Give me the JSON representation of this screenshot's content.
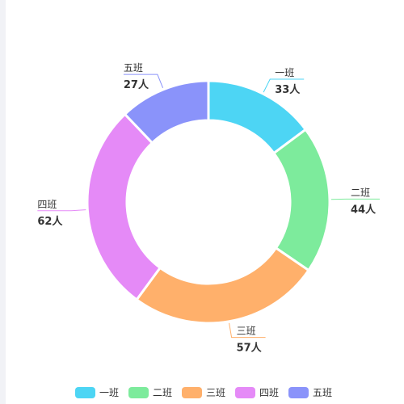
{
  "chart_data": {
    "type": "pie",
    "variant": "donut",
    "unit": "人",
    "slices": [
      {
        "name": "一班",
        "value": 33,
        "color": "#4dd5f4"
      },
      {
        "name": "二班",
        "value": 44,
        "color": "#7deb9c"
      },
      {
        "name": "三班",
        "value": 57,
        "color": "#ffb06b"
      },
      {
        "name": "四班",
        "value": 62,
        "color": "#e58af7"
      },
      {
        "name": "五班",
        "value": 27,
        "color": "#8a93fa"
      }
    ],
    "legend": {
      "position": "bottom",
      "items": [
        "一班",
        "二班",
        "三班",
        "四班",
        "五班"
      ]
    }
  }
}
